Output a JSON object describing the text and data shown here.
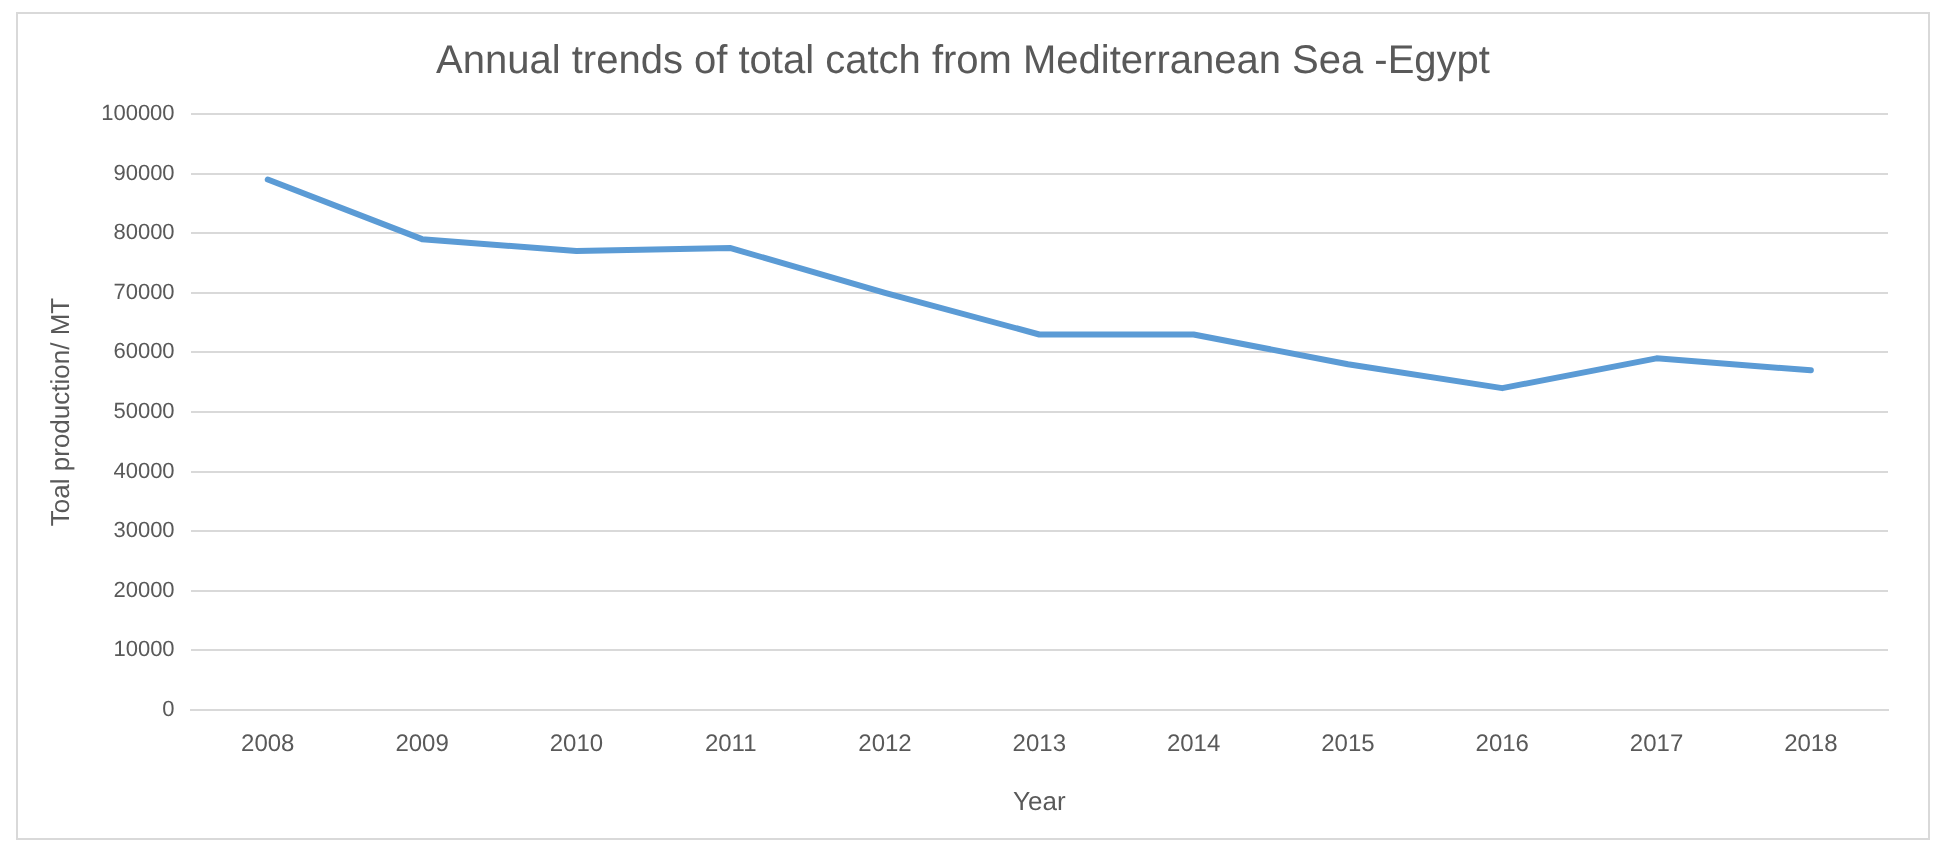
{
  "chart_data": {
    "type": "line",
    "title": "Annual trends of total catch from Mediterranean Sea -Egypt",
    "xlabel": "Year",
    "ylabel": "Toal production/ MT",
    "categories": [
      "2008",
      "2009",
      "2010",
      "2011",
      "2012",
      "2013",
      "2014",
      "2015",
      "2016",
      "2017",
      "2018"
    ],
    "series": [
      {
        "color": "#5b9bd5",
        "values": [
          89000,
          79000,
          77000,
          77500,
          70000,
          63000,
          63000,
          58000,
          54000,
          59000,
          57000
        ]
      }
    ],
    "ylim": [
      0,
      100000
    ],
    "yticks": [
      0,
      10000,
      20000,
      30000,
      40000,
      50000,
      60000,
      70000,
      80000,
      90000,
      100000
    ],
    "grid": "y",
    "legend": false,
    "marker": "none"
  }
}
